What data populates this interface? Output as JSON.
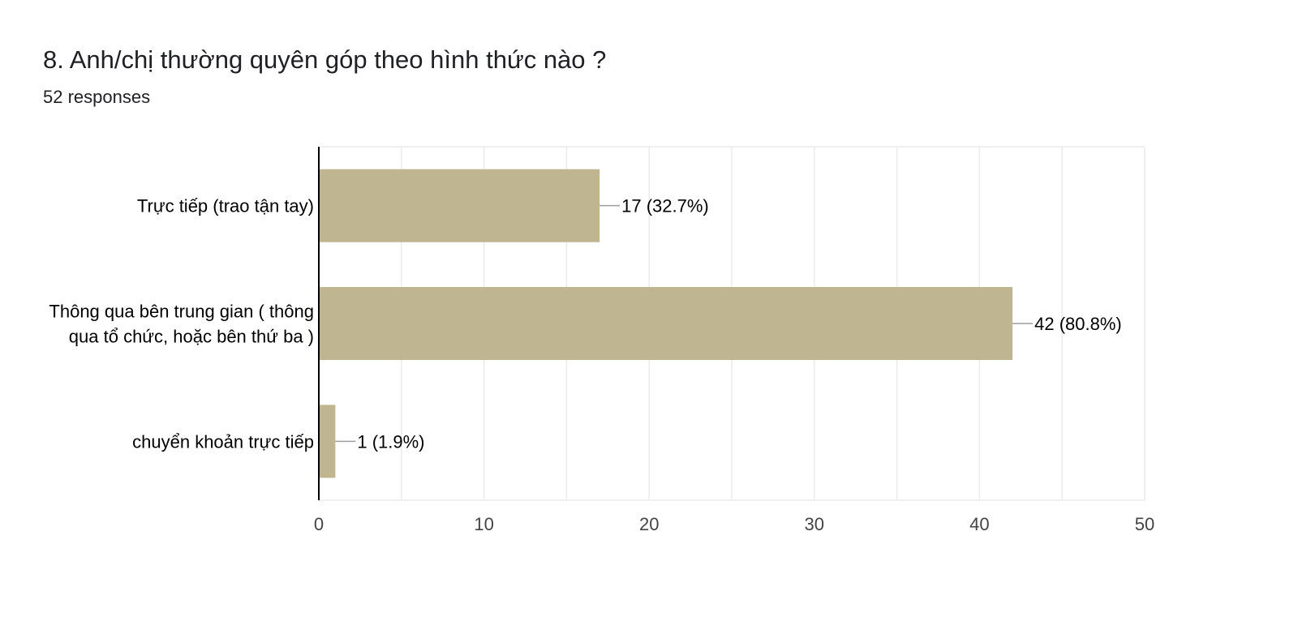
{
  "question": {
    "title": "8. Anh/chị thường quyên góp theo hình thức nào ?",
    "responses": "52 responses"
  },
  "colors": {
    "bar": "#bfb591",
    "grid": "#ebebeb",
    "axis": "#000000",
    "text": "#202124",
    "leader": "#9e9e9e"
  },
  "chart_data": {
    "type": "bar",
    "orientation": "horizontal",
    "categories": [
      [
        "Trực tiếp (trao tận tay)"
      ],
      [
        "Thông qua bên trung gian ( thông",
        "qua tổ chức, hoặc bên thứ ba )"
      ],
      [
        "chuyển khoản trực tiếp"
      ]
    ],
    "values": [
      17,
      42,
      1
    ],
    "data_labels": [
      "17 (32.7%)",
      "42 (80.8%)",
      "1 (1.9%)"
    ],
    "x_ticks": [
      0,
      10,
      20,
      30,
      40,
      50
    ],
    "xlim": [
      0,
      50
    ],
    "grid": true,
    "legend": "none"
  }
}
